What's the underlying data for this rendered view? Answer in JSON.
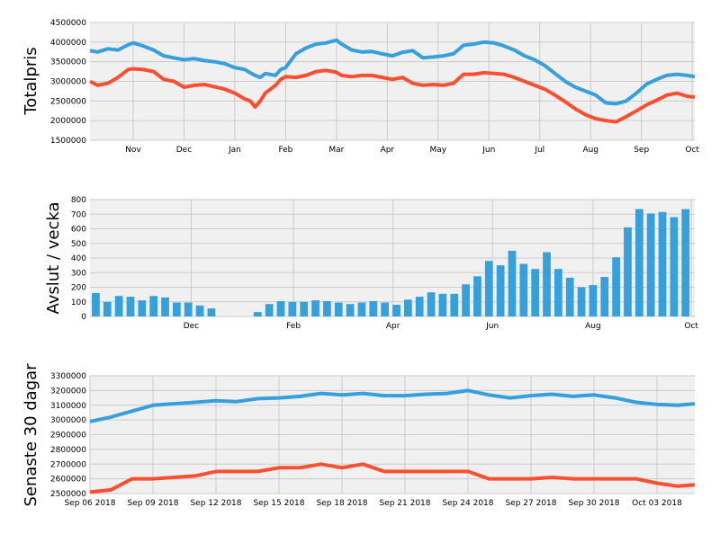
{
  "colors": {
    "blue": "#35a0dc",
    "red": "#fc4f30",
    "panel": "#f0f0f0",
    "grid": "#cbcbcb"
  },
  "chart_data": [
    {
      "type": "line",
      "ylabel": "Totalpris",
      "ylim": [
        1500000,
        4500000
      ],
      "yticks": [
        "1500000",
        "2000000",
        "2500000",
        "3000000",
        "3500000",
        "4000000",
        "4500000"
      ],
      "xticks": [
        "Nov",
        "Dec",
        "Jan",
        "Feb",
        "Mar",
        "Apr",
        "May",
        "Jun",
        "Jul",
        "Aug",
        "Sep",
        "Oct"
      ],
      "xtick_positions": [
        1,
        2,
        3,
        4,
        5,
        6,
        7,
        8,
        9,
        10,
        11,
        12
      ],
      "xlim": [
        0.15,
        12.05
      ],
      "grid": true,
      "series": [
        {
          "color_key": "blue",
          "x": [
            0.15,
            0.3,
            0.5,
            0.7,
            0.9,
            1.0,
            1.2,
            1.4,
            1.6,
            1.8,
            2.0,
            2.2,
            2.4,
            2.6,
            2.8,
            3.0,
            3.2,
            3.3,
            3.4,
            3.5,
            3.6,
            3.8,
            3.9,
            4.0,
            4.2,
            4.4,
            4.6,
            4.8,
            5.0,
            5.1,
            5.3,
            5.5,
            5.7,
            5.9,
            6.1,
            6.3,
            6.5,
            6.7,
            6.9,
            7.1,
            7.3,
            7.5,
            7.7,
            7.9,
            8.1,
            8.3,
            8.5,
            8.7,
            8.9,
            9.1,
            9.3,
            9.5,
            9.7,
            9.9,
            10.1,
            10.3,
            10.5,
            10.7,
            10.9,
            11.1,
            11.3,
            11.5,
            11.7,
            11.9,
            12.05
          ],
          "y": [
            3780000,
            3750000,
            3830000,
            3800000,
            3930000,
            3980000,
            3900000,
            3800000,
            3650000,
            3600000,
            3550000,
            3580000,
            3530000,
            3500000,
            3450000,
            3350000,
            3300000,
            3220000,
            3150000,
            3100000,
            3200000,
            3150000,
            3300000,
            3350000,
            3700000,
            3850000,
            3950000,
            3980000,
            4050000,
            3950000,
            3800000,
            3750000,
            3760000,
            3700000,
            3650000,
            3740000,
            3780000,
            3600000,
            3620000,
            3650000,
            3700000,
            3920000,
            3950000,
            4000000,
            3980000,
            3900000,
            3800000,
            3650000,
            3550000,
            3400000,
            3200000,
            3000000,
            2850000,
            2750000,
            2650000,
            2450000,
            2430000,
            2500000,
            2700000,
            2930000,
            3050000,
            3150000,
            3180000,
            3150000,
            3120000
          ]
        },
        {
          "color_key": "red",
          "x": [
            0.15,
            0.3,
            0.5,
            0.7,
            0.9,
            1.0,
            1.2,
            1.4,
            1.6,
            1.8,
            2.0,
            2.2,
            2.4,
            2.6,
            2.8,
            3.0,
            3.2,
            3.3,
            3.4,
            3.5,
            3.6,
            3.8,
            3.9,
            4.0,
            4.2,
            4.4,
            4.6,
            4.8,
            5.0,
            5.1,
            5.3,
            5.5,
            5.7,
            5.9,
            6.1,
            6.3,
            6.5,
            6.7,
            6.9,
            7.1,
            7.3,
            7.5,
            7.7,
            7.9,
            8.1,
            8.3,
            8.5,
            8.7,
            8.9,
            9.1,
            9.3,
            9.5,
            9.7,
            9.9,
            10.1,
            10.3,
            10.5,
            10.7,
            10.9,
            11.1,
            11.3,
            11.5,
            11.7,
            11.9,
            12.05
          ],
          "y": [
            3000000,
            2900000,
            2950000,
            3100000,
            3300000,
            3320000,
            3300000,
            3250000,
            3050000,
            3000000,
            2850000,
            2900000,
            2920000,
            2860000,
            2800000,
            2700000,
            2550000,
            2500000,
            2350000,
            2500000,
            2700000,
            2900000,
            3050000,
            3120000,
            3100000,
            3150000,
            3250000,
            3280000,
            3230000,
            3150000,
            3120000,
            3150000,
            3150000,
            3100000,
            3050000,
            3100000,
            2950000,
            2900000,
            2920000,
            2900000,
            2950000,
            3180000,
            3180000,
            3220000,
            3200000,
            3180000,
            3100000,
            3000000,
            2900000,
            2800000,
            2650000,
            2480000,
            2300000,
            2150000,
            2050000,
            2000000,
            1970000,
            2100000,
            2250000,
            2400000,
            2520000,
            2650000,
            2700000,
            2620000,
            2600000
          ]
        }
      ]
    },
    {
      "type": "bar",
      "ylabel": "Avslut / vecka",
      "ylim": [
        0,
        800
      ],
      "yticks": [
        "0",
        "100",
        "200",
        "300",
        "400",
        "500",
        "600",
        "700",
        "800"
      ],
      "xticks": [
        "Dec",
        "Feb",
        "Apr",
        "Jun",
        "Aug",
        "Oct"
      ],
      "xtick_positions": [
        8.75,
        17.6,
        26.2,
        34.8,
        43.5,
        52
      ],
      "xlim": [
        0,
        52.3
      ],
      "grid": true,
      "values": [
        160,
        100,
        140,
        135,
        110,
        140,
        130,
        95,
        95,
        75,
        55,
        0,
        0,
        0,
        30,
        85,
        105,
        100,
        100,
        110,
        105,
        95,
        85,
        95,
        105,
        95,
        80,
        115,
        135,
        165,
        155,
        155,
        220,
        275,
        380,
        350,
        450,
        360,
        325,
        440,
        325,
        265,
        200,
        215,
        270,
        405,
        610,
        735,
        705,
        715,
        680,
        735
      ]
    },
    {
      "type": "line",
      "ylabel": "Senaste 30 dagar",
      "ylim": [
        2500000,
        3300000
      ],
      "yticks": [
        "2500000",
        "2600000",
        "2700000",
        "2800000",
        "2900000",
        "3000000",
        "3100000",
        "3200000",
        "3300000"
      ],
      "xticks": [
        "Sep 06 2018",
        "Sep 09 2018",
        "Sep 12 2018",
        "Sep 15 2018",
        "Sep 18 2018",
        "Sep 21 2018",
        "Sep 24 2018",
        "Sep 27 2018",
        "Sep 30 2018",
        "Oct 03 2018"
      ],
      "xtick_positions": [
        0,
        3,
        6,
        9,
        12,
        15,
        18,
        21,
        24,
        27
      ],
      "xlim": [
        0,
        28.8
      ],
      "grid": true,
      "series": [
        {
          "color_key": "blue",
          "x": [
            0,
            1,
            2,
            3,
            4,
            5,
            6,
            7,
            8,
            9,
            10,
            11,
            12,
            13,
            14,
            15,
            16,
            17,
            18,
            19,
            20,
            21,
            22,
            23,
            24,
            25,
            26,
            27,
            28,
            28.8
          ],
          "y": [
            2990000,
            3020000,
            3060000,
            3100000,
            3110000,
            3120000,
            3130000,
            3125000,
            3145000,
            3150000,
            3160000,
            3180000,
            3170000,
            3180000,
            3165000,
            3165000,
            3175000,
            3180000,
            3200000,
            3170000,
            3150000,
            3165000,
            3175000,
            3160000,
            3170000,
            3150000,
            3120000,
            3105000,
            3100000,
            3110000
          ]
        },
        {
          "color_key": "red",
          "x": [
            0,
            1,
            2,
            3,
            4,
            5,
            6,
            7,
            8,
            9,
            10,
            11,
            12,
            13,
            14,
            15,
            16,
            17,
            18,
            19,
            20,
            21,
            22,
            23,
            24,
            25,
            26,
            27,
            28,
            28.8
          ],
          "y": [
            2510000,
            2525000,
            2600000,
            2600000,
            2610000,
            2620000,
            2650000,
            2650000,
            2650000,
            2675000,
            2675000,
            2700000,
            2675000,
            2700000,
            2650000,
            2650000,
            2650000,
            2650000,
            2650000,
            2600000,
            2600000,
            2600000,
            2610000,
            2600000,
            2600000,
            2600000,
            2600000,
            2570000,
            2550000,
            2560000
          ]
        }
      ]
    }
  ]
}
